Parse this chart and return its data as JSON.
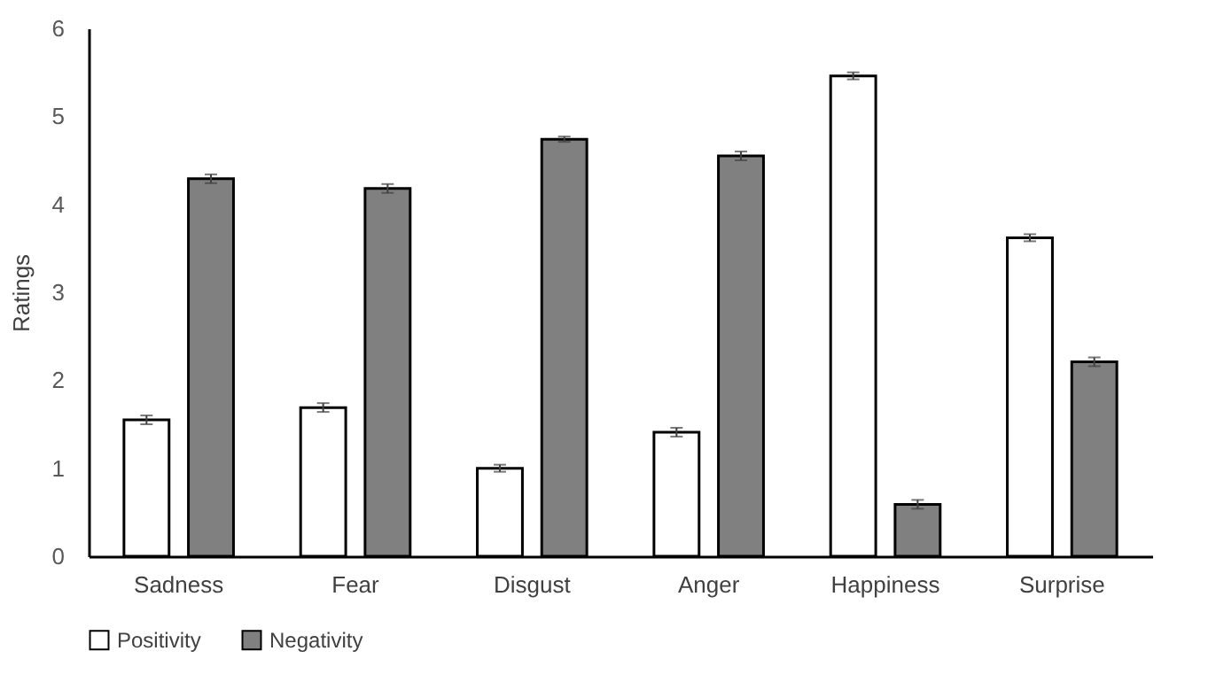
{
  "chart_data": {
    "type": "bar",
    "ylabel": "Ratings",
    "categories": [
      "Sadness",
      "Fear",
      "Disgust",
      "Anger",
      "Happiness",
      "Surprise"
    ],
    "series": [
      {
        "name": "Positivity",
        "color": "#ffffff",
        "values": [
          1.55,
          1.69,
          1.0,
          1.41,
          5.46,
          3.62
        ],
        "errors": [
          0.05,
          0.05,
          0.04,
          0.05,
          0.04,
          0.04
        ]
      },
      {
        "name": "Negativity",
        "color": "#808080",
        "values": [
          4.29,
          4.18,
          4.74,
          4.55,
          0.59,
          2.21
        ],
        "errors": [
          0.05,
          0.05,
          0.03,
          0.05,
          0.05,
          0.05
        ]
      }
    ],
    "ylim": [
      0,
      6
    ],
    "yticks": [
      0,
      1,
      2,
      3,
      4,
      5,
      6
    ],
    "legend": "bottom"
  }
}
